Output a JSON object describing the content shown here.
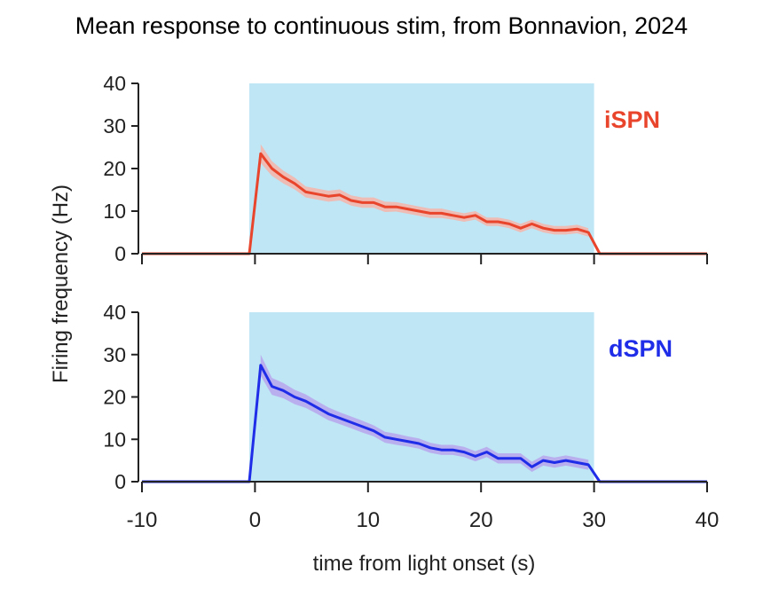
{
  "chart_data": {
    "type": "line",
    "title": "Mean response to continuous stim, from Bonnavion, 2024",
    "xlabel": "time from light onset (s)",
    "ylabel": "Firing frequency (Hz)",
    "xlim": [
      -10,
      40
    ],
    "x_ticks": [
      -10,
      0,
      10,
      20,
      30,
      40
    ],
    "x_tick_labels": [
      "-10",
      "0",
      "10",
      "20",
      "30",
      "40"
    ],
    "y_ticks": [
      0,
      10,
      20,
      30,
      40
    ],
    "y_tick_labels": [
      "0",
      "10",
      "20",
      "30",
      "40"
    ],
    "stim_window": {
      "start": -0.5,
      "end": 30,
      "color": "#bfe6f5"
    },
    "grid": false,
    "panels": [
      {
        "label": "iSPN",
        "color": "#e8452c",
        "band_color": "#f6b4a8",
        "ylim": [
          0,
          40
        ],
        "series": [
          {
            "name": "iSPN",
            "x": [
              -10,
              -0.5,
              0.5,
              1.5,
              2.5,
              3.5,
              4.5,
              5.5,
              6.5,
              7.5,
              8.5,
              9.5,
              10.5,
              11.5,
              12.5,
              13.5,
              14.5,
              15.5,
              16.5,
              17.5,
              18.5,
              19.5,
              20.5,
              21.5,
              22.5,
              23.5,
              24.5,
              25.5,
              26.5,
              27.5,
              28.5,
              29.5,
              30.5,
              40
            ],
            "y": [
              0,
              0,
              23.5,
              20,
              18,
              16.5,
              14.5,
              14,
              13.5,
              13.8,
              12.5,
              12,
              12,
              11,
              11,
              10.5,
              10,
              9.5,
              9.5,
              9,
              8.5,
              9,
              7.5,
              7.5,
              7,
              6,
              7,
              6,
              5.5,
              5.5,
              5.8,
              5,
              0,
              0
            ],
            "sem": [
              0,
              0,
              2.2,
              1.7,
              1.5,
              1.4,
              1.3,
              1.3,
              1.3,
              1.3,
              1.2,
              1.2,
              1.2,
              1.2,
              1.1,
              1.1,
              1.1,
              1.1,
              1.1,
              1.0,
              1.0,
              1.0,
              1.0,
              1.0,
              1.0,
              1.0,
              1.0,
              1.0,
              1.0,
              1.0,
              1.0,
              1.0,
              0,
              0
            ]
          }
        ]
      },
      {
        "label": "dSPN",
        "color": "#1f2de8",
        "band_color": "#b7a4ec",
        "ylim": [
          0,
          40
        ],
        "series": [
          {
            "name": "dSPN",
            "x": [
              -10,
              -0.5,
              0.5,
              1.5,
              2.5,
              3.5,
              4.5,
              5.5,
              6.5,
              7.5,
              8.5,
              9.5,
              10.5,
              11.5,
              12.5,
              13.5,
              14.5,
              15.5,
              16.5,
              17.5,
              18.5,
              19.5,
              20.5,
              21.5,
              22.5,
              23.5,
              24.5,
              25.5,
              26.5,
              27.5,
              28.5,
              29.5,
              30.5,
              40
            ],
            "y": [
              0,
              0,
              27.5,
              22.5,
              21.5,
              20,
              19,
              17.5,
              16,
              15,
              14,
              13,
              12,
              10.5,
              10,
              9.5,
              9,
              8,
              7.5,
              7.5,
              7,
              6,
              7,
              5.5,
              5.5,
              5.5,
              3.5,
              5,
              4.5,
              5,
              4.5,
              4,
              0,
              0
            ],
            "sem": [
              0,
              0,
              2.5,
              2.0,
              1.8,
              1.7,
              1.6,
              1.5,
              1.5,
              1.4,
              1.4,
              1.4,
              1.3,
              1.3,
              1.3,
              1.2,
              1.2,
              1.2,
              1.2,
              1.2,
              1.2,
              1.2,
              1.2,
              1.2,
              1.2,
              1.2,
              1.2,
              1.2,
              1.2,
              1.2,
              1.2,
              1.2,
              0,
              0
            ]
          }
        ]
      }
    ]
  }
}
